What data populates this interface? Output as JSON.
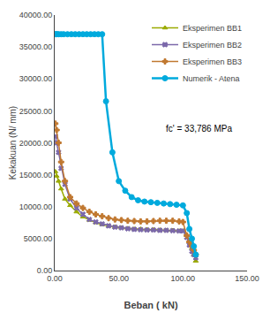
{
  "chart_data": {
    "type": "line",
    "x_label": "Beban ( kN)",
    "y_label": "Kekakuan (N/ mm)",
    "annotation": "fc' = 33,786 MPa",
    "xlim": [
      0,
      150
    ],
    "ylim": [
      0,
      40000
    ],
    "xticks": [
      {
        "value": 0,
        "label": "0.00"
      },
      {
        "value": 50,
        "label": "50.00"
      },
      {
        "value": 100,
        "label": "100.00"
      },
      {
        "value": 150,
        "label": "150.00"
      }
    ],
    "yticks": [
      {
        "value": 0,
        "label": "0.00"
      },
      {
        "value": 5000,
        "label": "5000.00"
      },
      {
        "value": 10000,
        "label": "10000.00"
      },
      {
        "value": 15000,
        "label": "15000.00"
      },
      {
        "value": 20000,
        "label": "20000.00"
      },
      {
        "value": 25000,
        "label": "25000.00"
      },
      {
        "value": 30000,
        "label": "30000.00"
      },
      {
        "value": 35000,
        "label": "35000.00"
      },
      {
        "value": 40000,
        "label": "40000.00"
      }
    ],
    "grid": false,
    "legend": "upper right",
    "series": [
      {
        "name": "Eksperimen BB1",
        "color": "#9aaa00",
        "marker": "triangle",
        "x": [
          0.5,
          1.5,
          3.0,
          5.0,
          8.0,
          12.0,
          17.0,
          22.0,
          27.0,
          32.0,
          37.0,
          42.0,
          47.0,
          52.0,
          57.0,
          62.0,
          67.0,
          72.0,
          77.0,
          82.0,
          87.0,
          92.0,
          97.0,
          100.0,
          103.0,
          105.0,
          107.0,
          108.5,
          110.0
        ],
        "values": [
          15500,
          14800,
          14000,
          12800,
          11200,
          10200,
          9200,
          8400,
          7900,
          7500,
          7200,
          7000,
          6800,
          6700,
          6600,
          6500,
          6500,
          6400,
          6400,
          6350,
          6300,
          6300,
          6200,
          6200,
          5500,
          4500,
          3500,
          2500,
          1500
        ]
      },
      {
        "name": "Eksperimen BB2",
        "color": "#7B68AA",
        "marker": "x",
        "x": [
          0.5,
          1.5,
          3.0,
          5.0,
          8.0,
          12.0,
          17.0,
          22.0,
          27.0,
          32.0,
          37.0,
          42.0,
          47.0,
          52.0,
          57.0,
          62.0,
          67.0,
          72.0,
          77.0,
          82.0,
          87.0,
          92.0,
          97.0,
          100.0,
          103.0,
          105.0,
          107.0,
          108.5,
          110.0
        ],
        "values": [
          21000,
          20000,
          18500,
          16000,
          13500,
          11200,
          9800,
          8800,
          8000,
          7600,
          7300,
          7000,
          6800,
          6700,
          6550,
          6450,
          6400,
          6350,
          6350,
          6300,
          6300,
          6250,
          6200,
          6200,
          5200,
          4000,
          3000,
          2500,
          2000
        ]
      },
      {
        "name": "Eksperimen BB3",
        "color": "#C07830",
        "marker": "plus",
        "x": [
          0.5,
          1.5,
          3.0,
          5.0,
          8.0,
          12.0,
          17.0,
          22.0,
          27.0,
          32.0,
          37.0,
          42.0,
          47.0,
          52.0,
          57.0,
          62.0,
          67.0,
          72.0,
          77.0,
          82.0,
          87.0,
          92.0,
          97.0,
          100.0,
          103.0,
          105.0,
          107.0,
          108.5,
          110.0
        ],
        "values": [
          23000,
          22000,
          20000,
          17000,
          14000,
          11500,
          10500,
          9800,
          9200,
          8800,
          8500,
          8200,
          8000,
          7900,
          7800,
          7750,
          7700,
          7700,
          7750,
          7800,
          7800,
          7800,
          7700,
          7600,
          5500,
          4500,
          3800,
          3200,
          2500
        ]
      },
      {
        "name": "Numerik - Atena",
        "color": "#00AADD",
        "marker": "circle",
        "x": [
          0.5,
          1.0,
          2.0,
          3.0,
          5.0,
          7.0,
          10.0,
          13.0,
          16.0,
          19.0,
          22.0,
          25.0,
          28.0,
          31.0,
          34.0,
          37.0,
          40.0,
          45.0,
          50.0,
          55.0,
          60.0,
          65.0,
          70.0,
          75.0,
          80.0,
          85.0,
          90.0,
          95.0,
          100.0,
          103.0,
          105.0,
          107.0,
          108.5,
          110.0
        ],
        "values": [
          37000,
          37000,
          37000,
          37000,
          37000,
          37000,
          37000,
          37000,
          37000,
          37000,
          37000,
          37000,
          37000,
          37000,
          37000,
          37000,
          26500,
          18500,
          14000,
          12500,
          11500,
          11000,
          10800,
          10700,
          10600,
          10500,
          10400,
          10300,
          10200,
          9000,
          6500,
          5000,
          3800,
          2500
        ]
      }
    ]
  }
}
